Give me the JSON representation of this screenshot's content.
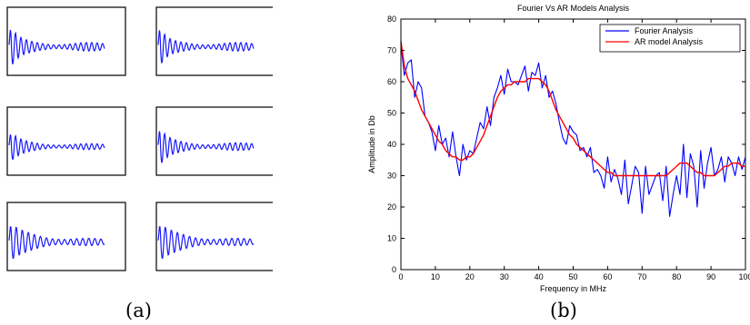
{
  "captions": {
    "a": "(a)",
    "b": "(b)"
  },
  "colors": {
    "fourier": "#0000ff",
    "ar": "#ff0000",
    "waveform": "#1a1aff",
    "axes": "#000000"
  },
  "panel_a": {
    "layout": "3x2 grid of waveform thumbnails",
    "waveforms": [
      {
        "id": 1,
        "amplitude": 1.0,
        "decay": 0.11,
        "freq": 1.0
      },
      {
        "id": 2,
        "amplitude": 1.0,
        "decay": 0.13,
        "freq": 1.0
      },
      {
        "id": 3,
        "amplitude": 0.7,
        "decay": 0.09,
        "freq": 1.0
      },
      {
        "id": 4,
        "amplitude": 0.9,
        "decay": 0.1,
        "freq": 1.0
      },
      {
        "id": 5,
        "amplitude": 0.8,
        "decay": 0.05,
        "freq": 0.9
      },
      {
        "id": 6,
        "amplitude": 0.8,
        "decay": 0.05,
        "freq": 0.9
      }
    ]
  },
  "chart_data": {
    "type": "line",
    "title": "Fourier Vs AR Models Analysis",
    "xlabel": "Frequency in MHz",
    "ylabel": "Amplitude in Db",
    "xlim": [
      0,
      100
    ],
    "ylim": [
      0,
      80
    ],
    "xticks": [
      0,
      10,
      20,
      30,
      40,
      50,
      60,
      70,
      80,
      90,
      100
    ],
    "yticks": [
      0,
      10,
      20,
      30,
      40,
      50,
      60,
      70,
      80
    ],
    "legend_position": "top-right",
    "series": [
      {
        "name": "Fourier Analysis",
        "color": "#0000ff",
        "x": [
          0,
          1,
          2,
          3,
          4,
          5,
          6,
          7,
          8,
          9,
          10,
          11,
          12,
          13,
          14,
          15,
          16,
          17,
          18,
          19,
          20,
          21,
          22,
          23,
          24,
          25,
          26,
          27,
          28,
          29,
          30,
          31,
          32,
          33,
          34,
          35,
          36,
          37,
          38,
          39,
          40,
          41,
          42,
          43,
          44,
          45,
          46,
          47,
          48,
          49,
          50,
          51,
          52,
          53,
          54,
          55,
          56,
          57,
          58,
          59,
          60,
          61,
          62,
          63,
          64,
          65,
          66,
          67,
          68,
          69,
          70,
          71,
          72,
          73,
          74,
          75,
          76,
          77,
          78,
          79,
          80,
          81,
          82,
          83,
          84,
          85,
          86,
          87,
          88,
          89,
          90,
          91,
          92,
          93,
          94,
          95,
          96,
          97,
          98,
          99,
          100
        ],
        "y": [
          72,
          62,
          66,
          67,
          55,
          60,
          58,
          49,
          47,
          44,
          38,
          46,
          40,
          42,
          36,
          44,
          36,
          30,
          40,
          35,
          38,
          37,
          42,
          47,
          45,
          52,
          46,
          55,
          58,
          62,
          56,
          64,
          60,
          60,
          59,
          62,
          65,
          57,
          63,
          62,
          66,
          58,
          62,
          55,
          57,
          53,
          47,
          42,
          40,
          46,
          44,
          43,
          38,
          39,
          36,
          39,
          31,
          32,
          30,
          26,
          36,
          28,
          32,
          29,
          24,
          35,
          21,
          27,
          33,
          31,
          18,
          33,
          24,
          27,
          30,
          31,
          22,
          33,
          17,
          24,
          30,
          24,
          40,
          23,
          37,
          33,
          20,
          38,
          26,
          34,
          39,
          30,
          32,
          36,
          28,
          36,
          34,
          30,
          36,
          32,
          36
        ]
      },
      {
        "name": "AR model Analysis",
        "color": "#ff0000",
        "x": [
          0,
          1,
          2,
          3,
          4,
          5,
          6,
          7,
          8,
          9,
          10,
          11,
          12,
          13,
          14,
          15,
          16,
          17,
          18,
          19,
          20,
          21,
          22,
          23,
          24,
          25,
          26,
          27,
          28,
          29,
          30,
          31,
          32,
          33,
          34,
          35,
          36,
          37,
          38,
          39,
          40,
          41,
          42,
          43,
          44,
          45,
          46,
          47,
          48,
          49,
          50,
          51,
          52,
          53,
          54,
          55,
          56,
          57,
          58,
          59,
          60,
          61,
          62,
          63,
          64,
          65,
          66,
          67,
          68,
          69,
          70,
          71,
          72,
          73,
          74,
          75,
          76,
          77,
          78,
          79,
          80,
          81,
          82,
          83,
          84,
          85,
          86,
          87,
          88,
          89,
          90,
          91,
          92,
          93,
          94,
          95,
          96,
          97,
          98,
          99,
          100
        ],
        "y": [
          73,
          65,
          61,
          59,
          57,
          54,
          51,
          49,
          47,
          45,
          43,
          41,
          40,
          38,
          37,
          36,
          36,
          35,
          35,
          36,
          36,
          37,
          39,
          41,
          43,
          46,
          49,
          52,
          55,
          57,
          58,
          59,
          59,
          60,
          60,
          60,
          60,
          61,
          61,
          61,
          61,
          60,
          59,
          57,
          54,
          51,
          49,
          47,
          45,
          43,
          42,
          40,
          39,
          38,
          37,
          36,
          35,
          34,
          33,
          32,
          31,
          31,
          30,
          30,
          30,
          30,
          30,
          30,
          30,
          30,
          30,
          30,
          30,
          30,
          30,
          30,
          30,
          30,
          31,
          32,
          33,
          34,
          34,
          34,
          33,
          32,
          31,
          31,
          30,
          30,
          30,
          30,
          31,
          32,
          33,
          33,
          34,
          34,
          34,
          33,
          33
        ]
      }
    ]
  }
}
